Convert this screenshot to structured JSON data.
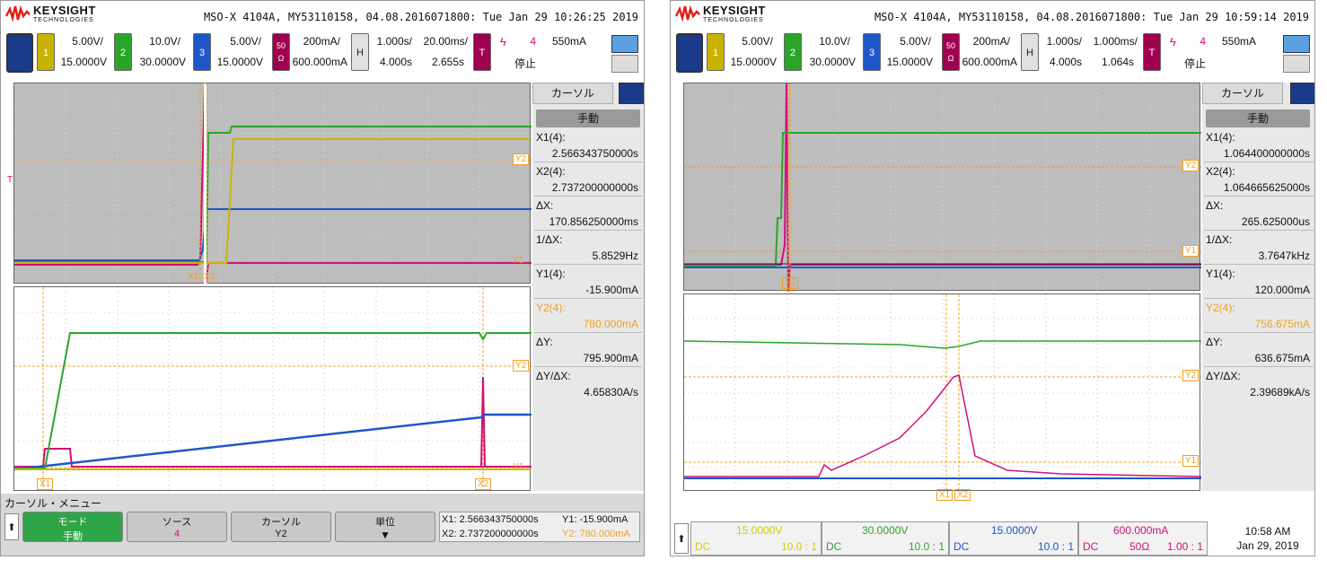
{
  "left": {
    "brand": "KEYSIGHT",
    "brand_sub": "TECHNOLOGIES",
    "title": "MSO-X 4104A, MY53110158, 04.08.2016071800: Tue Jan 29 10:26:25 2019",
    "channels": [
      {
        "label": "1",
        "scale": "5.00V/",
        "offset": "15.0000V",
        "color": "#c8b400"
      },
      {
        "label": "2",
        "scale": "10.0V/",
        "offset": "30.0000V",
        "color": "#2aa52a"
      },
      {
        "label": "3",
        "scale": "5.00V/",
        "offset": "15.0000V",
        "color": "#1f56c8"
      },
      {
        "label": "50 Ω",
        "scale": "200mA/",
        "offset": "600.000mA",
        "color": "#a00050"
      }
    ],
    "horizontal": {
      "label": "H",
      "time": "1.000s/",
      "delay": "4.000s",
      "zoom": "20.00ms/",
      "zoom_pos": "2.655s"
    },
    "trigger": {
      "label": "T",
      "source": "4",
      "level": "550mA",
      "status": "停止"
    },
    "cursor_tab": "カーソル",
    "mode": "手動",
    "x1_label": "X1(4):",
    "x1": "2.566343750000s",
    "x2_label": "X2(4):",
    "x2": "2.737200000000s",
    "dx_label": "ΔX:",
    "dx": "170.856250000ms",
    "inv_dx_label": "1/ΔX:",
    "inv_dx": "5.8529Hz",
    "y1_label": "Y1(4):",
    "y1": "-15.900mA",
    "y2_label": "Y2(4):",
    "y2": "780.000mA",
    "dy_label": "ΔY:",
    "dy": "795.900mA",
    "dydx_label": "ΔY/ΔX:",
    "dydx": "4.65830A/s",
    "menu": {
      "title": "カーソル・メニュー",
      "mode_label": "モード",
      "mode_value": "手動",
      "source_label": "ソース",
      "source_value": "4",
      "cursor_label": "カーソル",
      "cursor_value": "Y2",
      "unit_label": "単位",
      "x1": "X1: 2.566343750000s",
      "x2": "X2: 2.737200000000s",
      "y1": "Y1: -15.900mA",
      "y2": "Y2: 780.000mA"
    },
    "markers": {
      "x1": "X1",
      "x2": "X2",
      "y1": "Y1",
      "y2": "Y2",
      "t": "T"
    }
  },
  "right": {
    "brand": "KEYSIGHT",
    "brand_sub": "TECHNOLOGIES",
    "title": "MSO-X 4104A, MY53110158, 04.08.2016071800: Tue Jan 29 10:59:14 2019",
    "channels": [
      {
        "label": "1",
        "scale": "5.00V/",
        "offset": "15.0000V",
        "color": "#c8b400"
      },
      {
        "label": "2",
        "scale": "10.0V/",
        "offset": "30.0000V",
        "color": "#2aa52a"
      },
      {
        "label": "3",
        "scale": "5.00V/",
        "offset": "15.0000V",
        "color": "#1f56c8"
      },
      {
        "label": "50 Ω",
        "scale": "200mA/",
        "offset": "600.000mA",
        "color": "#a00050"
      }
    ],
    "horizontal": {
      "label": "H",
      "time": "1.000s/",
      "delay": "4.000s",
      "zoom": "1.000ms/",
      "zoom_pos": "1.064s"
    },
    "trigger": {
      "label": "T",
      "source": "4",
      "level": "550mA",
      "status": "停止"
    },
    "cursor_tab": "カーソル",
    "mode": "手動",
    "x1_label": "X1(4):",
    "x1": "1.064400000000s",
    "x2_label": "X2(4):",
    "x2": "1.064665625000s",
    "dx_label": "ΔX:",
    "dx": "265.625000us",
    "inv_dx_label": "1/ΔX:",
    "inv_dx": "3.7647kHz",
    "y1_label": "Y1(4):",
    "y1": "120.000mA",
    "y2_label": "Y2(4):",
    "y2": "756.675mA",
    "dy_label": "ΔY:",
    "dy": "636.675mA",
    "dydx_label": "ΔY/ΔX:",
    "dydx": "2.39689kA/s",
    "footer": {
      "c1_offset": "15.0000V",
      "c1_coupling": "DC",
      "c1_ratio": "10.0 : 1",
      "c2_offset": "30.0000V",
      "c2_coupling": "DC",
      "c2_ratio": "10.0 : 1",
      "c3_offset": "15.0000V",
      "c3_coupling": "DC",
      "c3_ratio": "10.0 : 1",
      "c4_offset": "600.000mA",
      "c4_coupling": "DC",
      "c4_imp": "50Ω",
      "c4_ratio": "1.00 : 1",
      "time": "10:58 AM",
      "date": "Jan 29, 2019"
    },
    "markers": {
      "x1": "X1",
      "x2": "X2",
      "y1": "Y1",
      "y2": "Y2",
      "t": "T"
    }
  },
  "colors": {
    "ch1": "#c8b400",
    "ch2": "#2aa52a",
    "ch3": "#1f56c8",
    "ch4": "#d0107a",
    "cursor": "#f0a020"
  }
}
